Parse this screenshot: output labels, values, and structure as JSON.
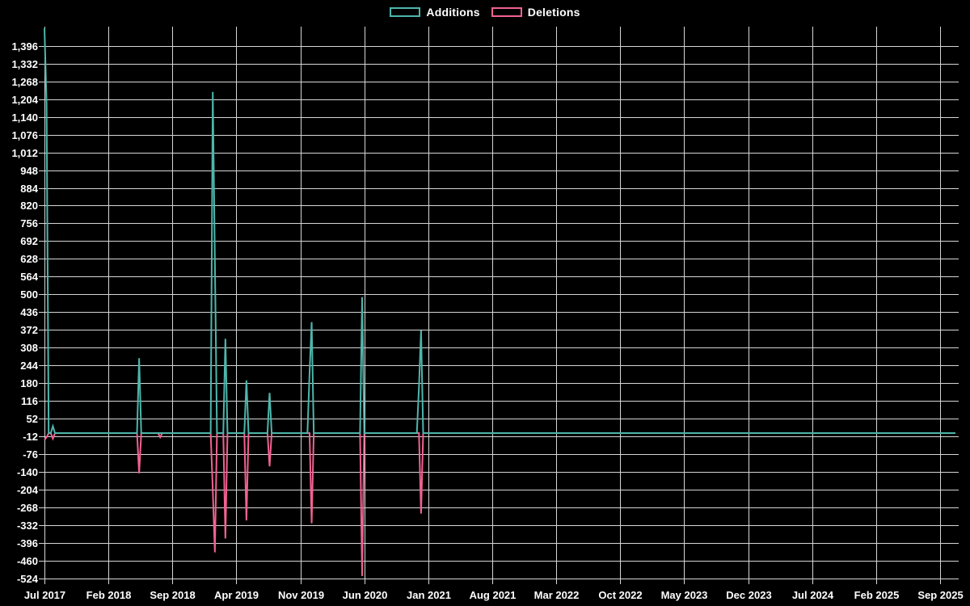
{
  "legend": {
    "additions_label": "Additions",
    "deletions_label": "Deletions"
  },
  "colors": {
    "additions": "#4db6ac",
    "deletions": "#f06292",
    "grid": "#d6d6d6",
    "background": "#000000",
    "text": "#ffffff"
  },
  "chart_data": {
    "type": "line",
    "title": "",
    "xlabel": "",
    "ylabel": "",
    "grid": true,
    "legend_position": "top-center",
    "x_tick_labels": [
      "Jul 2017",
      "Feb 2018",
      "Sep 2018",
      "Apr 2019",
      "Nov 2019",
      "Jun 2020",
      "Jan 2021",
      "Aug 2021",
      "Mar 2022",
      "Oct 2022",
      "May 2023",
      "Dec 2023",
      "Jul 2024",
      "Feb 2025",
      "Sep 2025"
    ],
    "y_tick_values": [
      1396,
      1332,
      1268,
      1204,
      1140,
      1076,
      1012,
      948,
      884,
      820,
      756,
      692,
      628,
      564,
      500,
      436,
      372,
      308,
      244,
      180,
      116,
      52,
      -12,
      -76,
      -140,
      -204,
      -268,
      -332,
      -396,
      -460,
      -524
    ],
    "y_range": [
      -524,
      1465
    ],
    "series": [
      {
        "name": "Additions",
        "color": "#4db6ac",
        "baseline": 0
      },
      {
        "name": "Deletions",
        "color": "#f06292",
        "baseline": 0
      }
    ],
    "weeks_total": 434,
    "start_label": "Jul 2017",
    "end_label": "Sep 2025",
    "note": "Weekly additions/deletions; all weeks are 0 except the spikes listed.",
    "spikes": [
      {
        "week": 0,
        "approx_date": "Jul 2017",
        "additions": 1459,
        "deletions": -25
      },
      {
        "week": 1,
        "approx_date": "Jul 2017",
        "additions": 1190,
        "deletions": -15
      },
      {
        "week": 4,
        "approx_date": "Aug 2017",
        "additions": 25,
        "deletions": -20
      },
      {
        "week": 45,
        "approx_date": "May 2018",
        "additions": 270,
        "deletions": -145
      },
      {
        "week": 55,
        "approx_date": "Jul 2018",
        "additions": 0,
        "deletions": -15
      },
      {
        "week": 80,
        "approx_date": "Jan 2019",
        "additions": 1230,
        "deletions": -205
      },
      {
        "week": 81,
        "approx_date": "Jan 2019",
        "additions": 625,
        "deletions": -430
      },
      {
        "week": 86,
        "approx_date": "Feb 2019",
        "additions": 340,
        "deletions": -380
      },
      {
        "week": 96,
        "approx_date": "May 2019",
        "additions": 190,
        "deletions": -315
      },
      {
        "week": 107,
        "approx_date": "Jul 2019",
        "additions": 145,
        "deletions": -120
      },
      {
        "week": 126,
        "approx_date": "Dec 2019",
        "additions": 215,
        "deletions": 0
      },
      {
        "week": 127,
        "approx_date": "Dec 2019",
        "additions": 400,
        "deletions": -325
      },
      {
        "week": 151,
        "approx_date": "Jun 2020",
        "additions": 490,
        "deletions": -515
      },
      {
        "week": 178,
        "approx_date": "Nov 2020",
        "additions": 165,
        "deletions": 0
      },
      {
        "week": 179,
        "approx_date": "Dec 2020",
        "additions": 370,
        "deletions": -290
      }
    ]
  }
}
